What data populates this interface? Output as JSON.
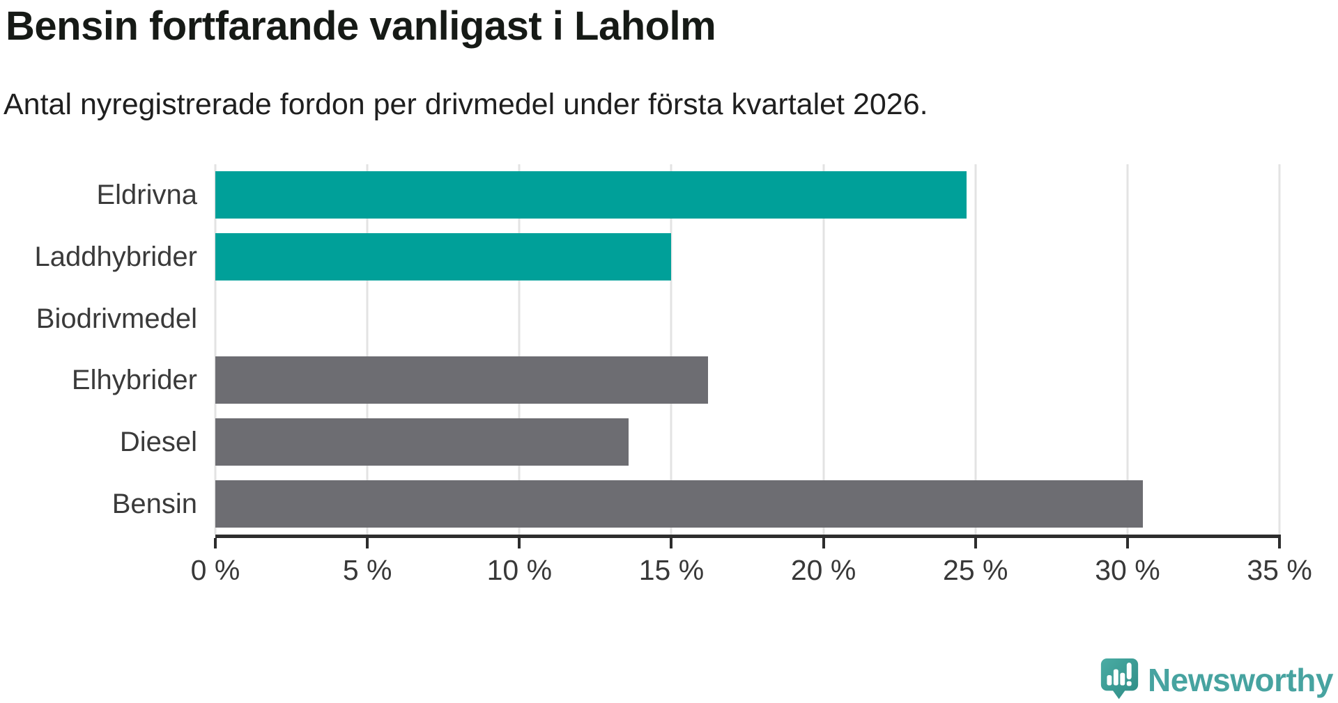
{
  "header": {
    "title": "Bensin fortfarande vanligast i Laholm",
    "subtitle": "Antal nyregistrerade fordon per drivmedel under första kvartalet 2026."
  },
  "chart_data": {
    "type": "bar",
    "orientation": "horizontal",
    "title": "Bensin fortfarande vanligast i Laholm",
    "subtitle": "Antal nyregistrerade fordon per drivmedel under första kvartalet 2026.",
    "categories": [
      "Eldrivna",
      "Laddhybrider",
      "Biodrivmedel",
      "Elhybrider",
      "Diesel",
      "Bensin"
    ],
    "values": [
      24.7,
      15.0,
      0,
      16.2,
      13.6,
      30.5
    ],
    "unit": "%",
    "colors": [
      "#00a099",
      "#00a099",
      "#00a099",
      "#6d6d72",
      "#6d6d72",
      "#6d6d72"
    ],
    "x_tick_values": [
      0,
      5,
      10,
      15,
      20,
      25,
      30,
      35
    ],
    "x_ticks": [
      "0 %",
      "5 %",
      "10 %",
      "15 %",
      "20 %",
      "25 %",
      "30 %",
      "35 %"
    ],
    "xlim": [
      0,
      35
    ],
    "xlabel": "",
    "ylabel": "",
    "grid": true,
    "legend": "none",
    "accent_color": "#00a099",
    "neutral_color": "#6d6d72",
    "gridline_color": "#e3e3e3",
    "axis_color": "#2d2d2d"
  },
  "branding": {
    "logo_text": "Newsworthy",
    "logo_text_color": "#47a3a0",
    "icon": "newsworthy-speech-bubble-bar-chart-icon"
  }
}
